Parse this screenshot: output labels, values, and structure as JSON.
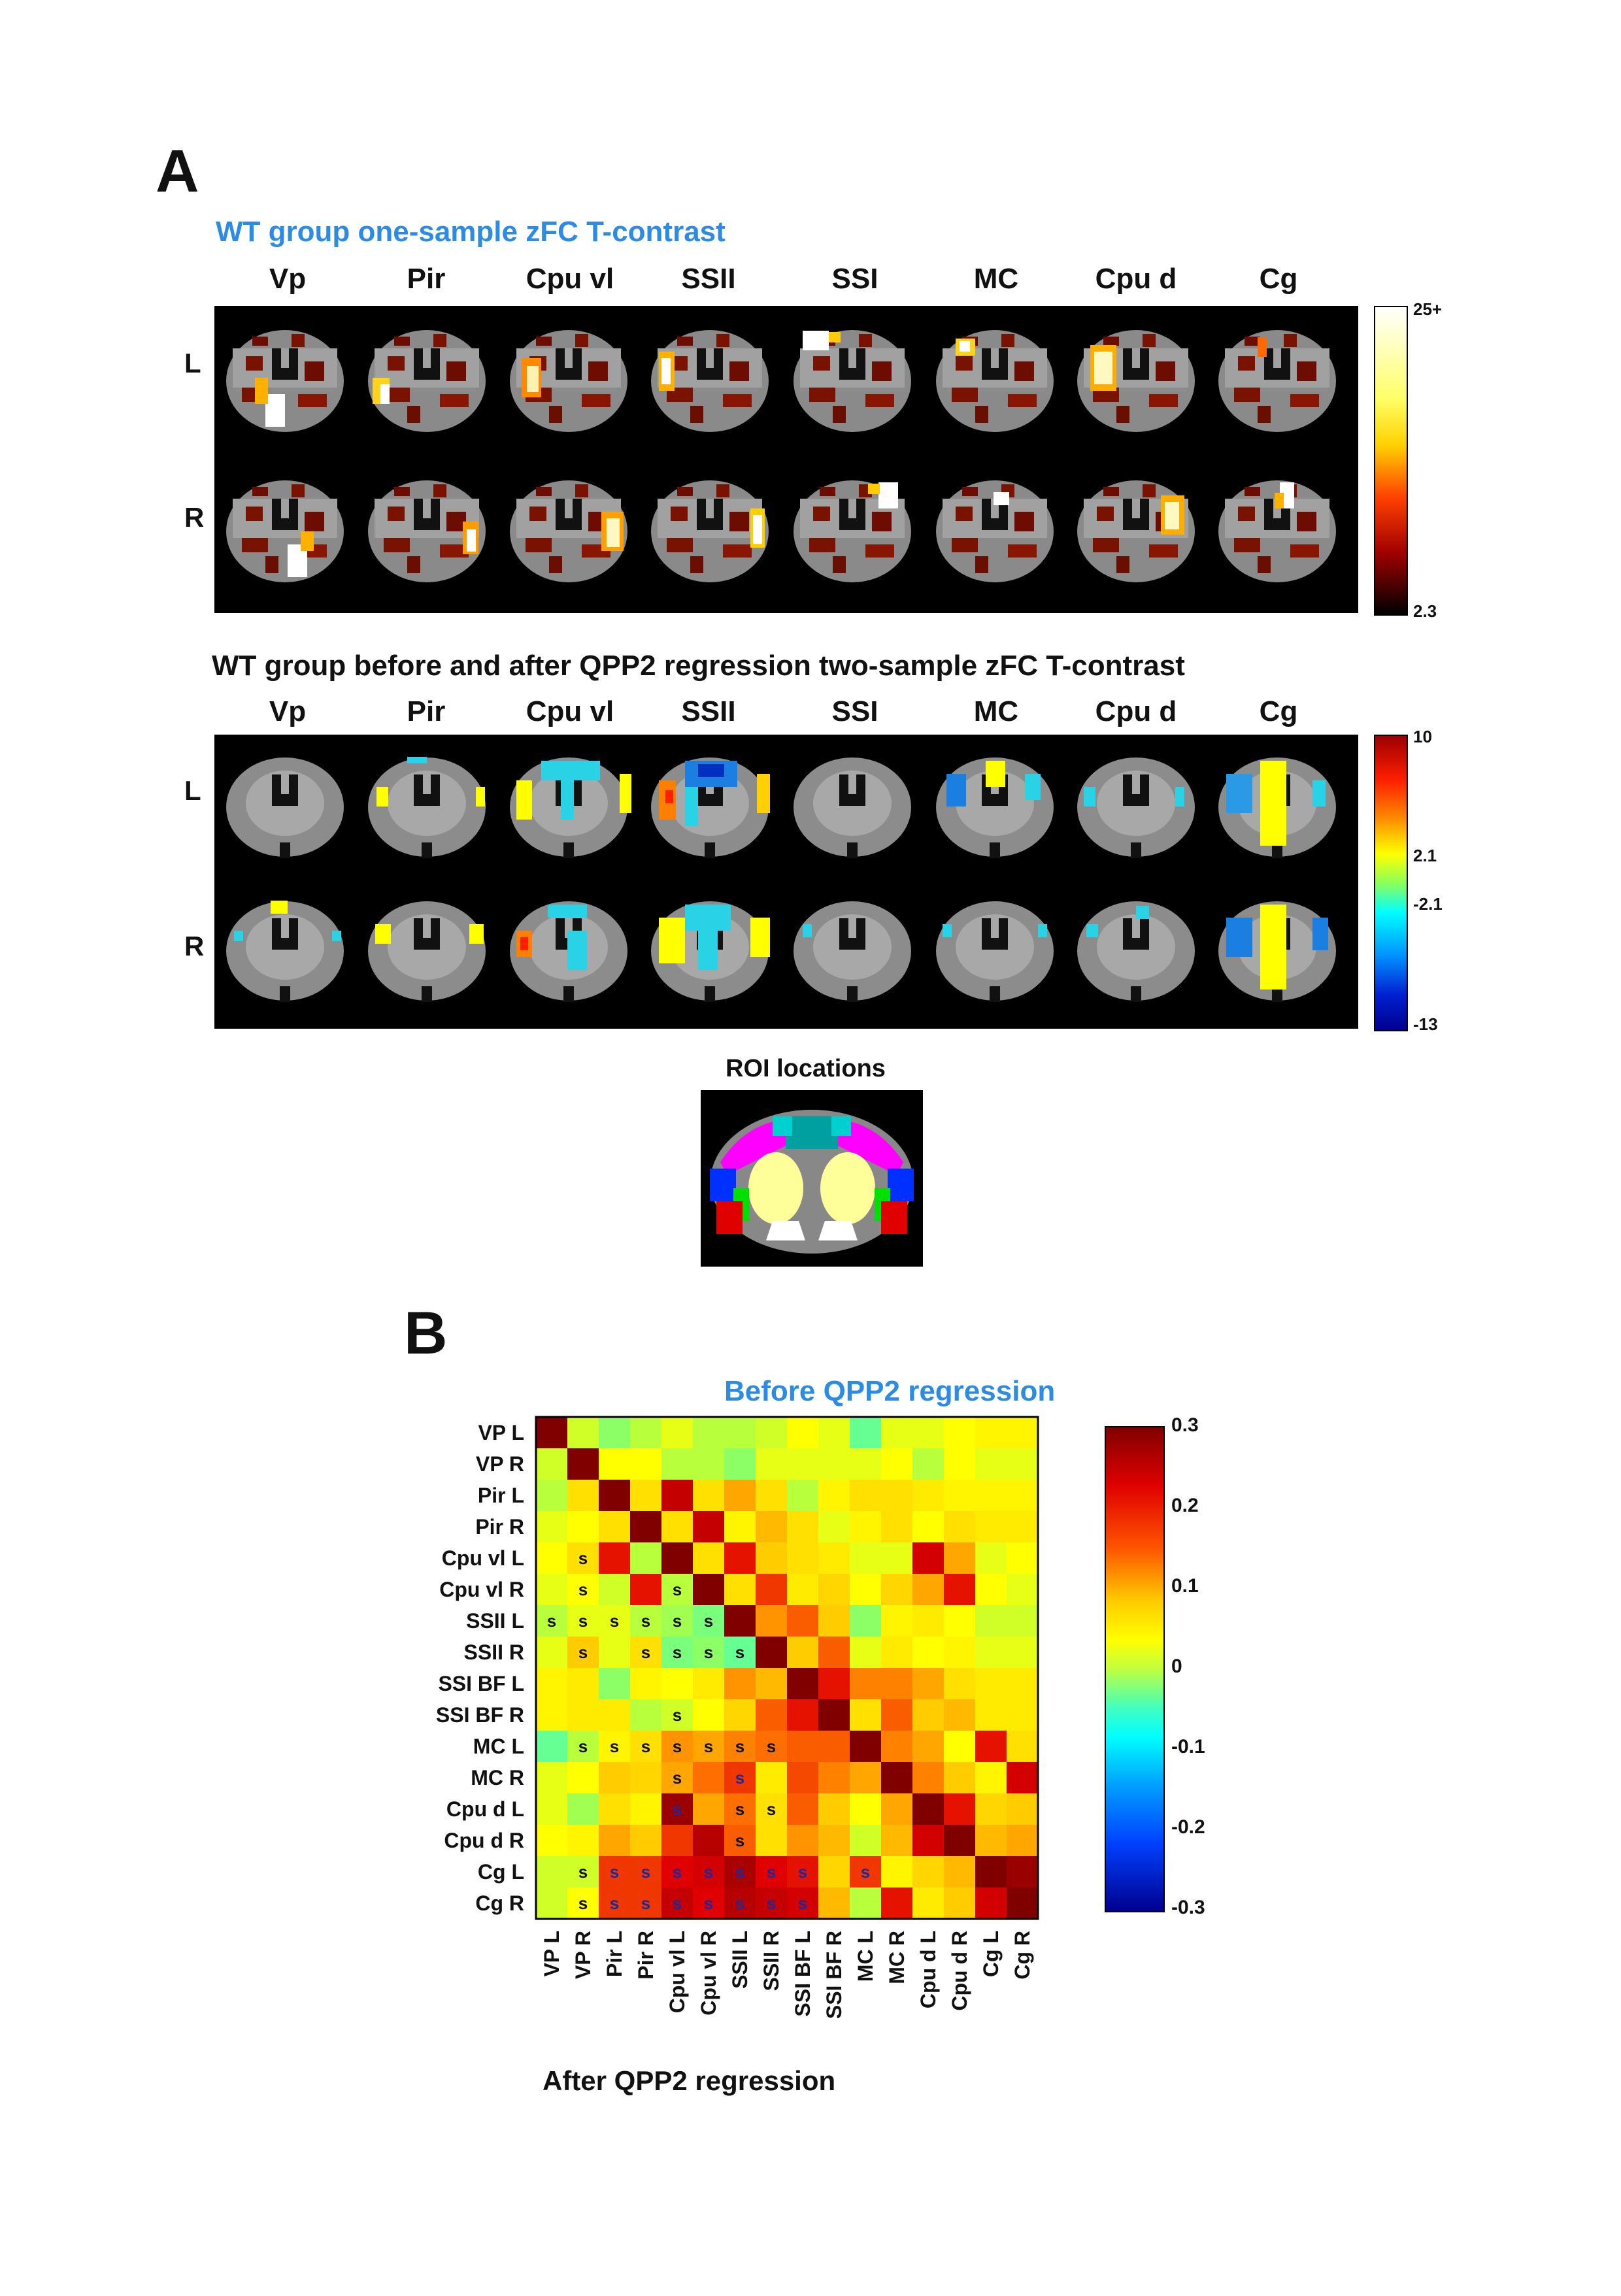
{
  "panel_a": {
    "letter": "A",
    "title1": "WT group one-sample  zFC T-contrast",
    "title2": "WT group before and after QPP2 regression two-sample zFC T-contrast",
    "roi_labels": [
      "Vp",
      "Pir",
      "Cpu vl",
      "SSII",
      "SSI",
      "MC",
      "Cpu d",
      "Cg"
    ],
    "row_labels": [
      "L",
      "R"
    ],
    "colorbar1": {
      "max": "25+",
      "min": "2.3"
    },
    "colorbar2": {
      "max": "10",
      "pos": "2.1",
      "neg": "-2.1",
      "min": "-13"
    },
    "roi_locations_title": "ROI locations"
  },
  "panel_b": {
    "letter": "B",
    "title": "Before QPP2 regression",
    "after_label": "After QPP2 regression",
    "colors": {
      "title": "#2b8be6"
    }
  },
  "chart_data": {
    "type": "heatmap",
    "title": "Before QPP2 regression",
    "xlabel": "After QPP2 regression",
    "labels": [
      "VP L",
      "VP R",
      "Pir L",
      "Pir R",
      "Cpu vl L",
      "Cpu vl R",
      "SSII L",
      "SSII R",
      "SSI BF L",
      "SSI BF R",
      "MC L",
      "MC R",
      "Cpu d L",
      "Cpu d R",
      "Cg L",
      "Cg R"
    ],
    "colorbar": {
      "min": -0.3,
      "max": 0.3,
      "ticks": [
        "0.3",
        "0.2",
        "0.1",
        "0",
        "-0.1",
        "-0.2",
        "-0.3"
      ]
    },
    "values": [
      [
        0.3,
        0.05,
        0.02,
        0.04,
        0.06,
        0.04,
        0.04,
        0.05,
        0.07,
        0.06,
        0.0,
        0.06,
        0.06,
        0.07,
        0.08,
        0.08
      ],
      [
        0.05,
        0.3,
        0.07,
        0.07,
        0.04,
        0.04,
        0.02,
        0.06,
        0.06,
        0.06,
        0.06,
        0.07,
        0.04,
        0.07,
        0.06,
        0.06
      ],
      [
        0.04,
        0.1,
        0.3,
        0.1,
        0.25,
        0.1,
        0.14,
        0.1,
        0.04,
        0.08,
        0.1,
        0.1,
        0.09,
        0.08,
        0.08,
        0.08
      ],
      [
        0.06,
        0.07,
        0.1,
        0.3,
        0.1,
        0.25,
        0.08,
        0.13,
        0.1,
        0.06,
        0.08,
        0.1,
        0.07,
        0.1,
        0.09,
        0.09
      ],
      [
        0.07,
        0.1,
        0.22,
        0.04,
        0.3,
        0.1,
        0.22,
        0.12,
        0.1,
        0.09,
        0.06,
        0.06,
        0.24,
        0.14,
        0.06,
        0.07
      ],
      [
        0.06,
        0.07,
        0.05,
        0.22,
        0.04,
        0.3,
        0.1,
        0.2,
        0.09,
        0.11,
        0.07,
        0.11,
        0.14,
        0.22,
        0.07,
        0.06
      ],
      [
        0.04,
        0.06,
        0.06,
        0.04,
        0.03,
        0.01,
        0.3,
        0.15,
        0.18,
        0.12,
        0.02,
        0.08,
        0.09,
        0.07,
        0.05,
        0.05
      ],
      [
        0.06,
        0.12,
        0.06,
        0.1,
        0.01,
        0.02,
        0.0,
        0.3,
        0.12,
        0.18,
        0.06,
        0.09,
        0.07,
        0.08,
        0.06,
        0.06
      ],
      [
        0.08,
        0.09,
        0.02,
        0.08,
        0.07,
        0.09,
        0.15,
        0.13,
        0.3,
        0.22,
        0.16,
        0.16,
        0.14,
        0.1,
        0.09,
        0.09
      ],
      [
        0.08,
        0.09,
        0.09,
        0.04,
        0.05,
        0.07,
        0.11,
        0.18,
        0.22,
        0.3,
        0.1,
        0.18,
        0.12,
        0.13,
        0.09,
        0.09
      ],
      [
        0.0,
        0.04,
        0.08,
        0.1,
        0.15,
        0.14,
        0.16,
        0.17,
        0.18,
        0.18,
        0.3,
        0.16,
        0.14,
        0.07,
        0.22,
        0.1
      ],
      [
        0.06,
        0.07,
        0.12,
        0.11,
        0.14,
        0.17,
        0.2,
        0.09,
        0.19,
        0.16,
        0.14,
        0.3,
        0.16,
        0.12,
        0.08,
        0.24
      ],
      [
        0.06,
        0.03,
        0.1,
        0.08,
        0.28,
        0.14,
        0.17,
        0.1,
        0.18,
        0.12,
        0.07,
        0.14,
        0.3,
        0.22,
        0.11,
        0.12
      ],
      [
        0.07,
        0.08,
        0.14,
        0.12,
        0.2,
        0.26,
        0.18,
        0.1,
        0.15,
        0.13,
        0.05,
        0.13,
        0.24,
        0.3,
        0.13,
        0.14
      ],
      [
        0.05,
        0.05,
        0.2,
        0.2,
        0.23,
        0.24,
        0.27,
        0.23,
        0.22,
        0.11,
        0.2,
        0.08,
        0.11,
        0.13,
        0.3,
        0.28
      ],
      [
        0.05,
        0.07,
        0.2,
        0.2,
        0.25,
        0.23,
        0.26,
        0.25,
        0.24,
        0.13,
        0.04,
        0.22,
        0.09,
        0.12,
        0.24,
        0.3
      ]
    ],
    "significant": [
      [],
      [],
      [],
      [],
      [
        1
      ],
      [
        1,
        4
      ],
      [
        0,
        1,
        2,
        3,
        4,
        5
      ],
      [
        1,
        3,
        4,
        5,
        6
      ],
      [],
      [
        4
      ],
      [
        1,
        2,
        3,
        4,
        5,
        6,
        7
      ],
      [
        4,
        6
      ],
      [
        4,
        6,
        7
      ],
      [
        6
      ],
      [
        1,
        2,
        3,
        4,
        5,
        6,
        7,
        8,
        10
      ],
      [
        1,
        2,
        3,
        4,
        5,
        6,
        7,
        8
      ]
    ],
    "sig_marker": "s"
  }
}
